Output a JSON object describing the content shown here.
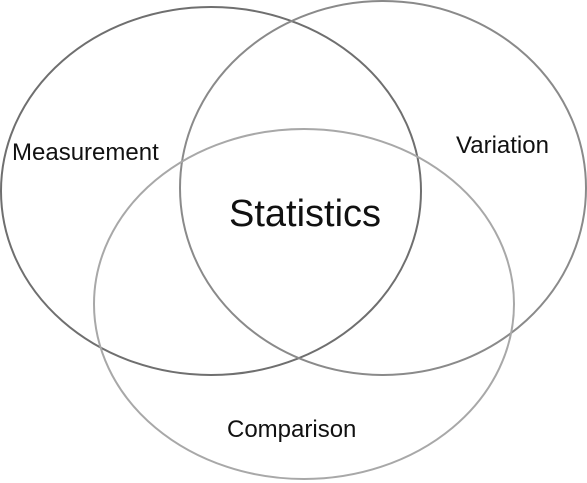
{
  "diagram": {
    "type": "venn",
    "center_label": "Statistics",
    "sets": [
      {
        "label": "Measurement",
        "stroke": "#6f6f6f"
      },
      {
        "label": "Variation",
        "stroke": "#8a8a8a"
      },
      {
        "label": "Comparison",
        "stroke": "#a8a8a8"
      }
    ]
  }
}
